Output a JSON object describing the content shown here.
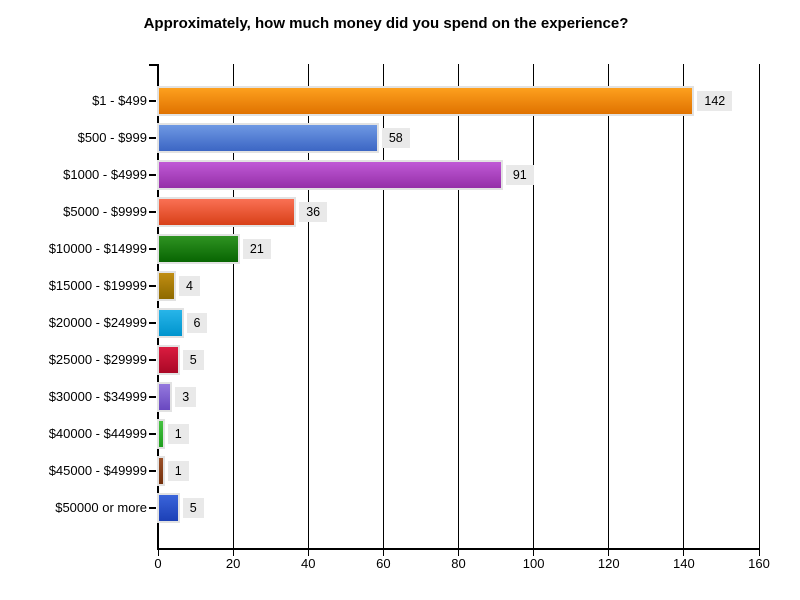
{
  "chart_data": {
    "type": "bar",
    "orientation": "horizontal",
    "title": "Approximately, how much money did you spend on the experience?",
    "categories": [
      "$1 - $499",
      "$500 - $999",
      "$1000 - $4999",
      "$5000 - $9999",
      "$10000 - $14999",
      "$15000 - $19999",
      "$20000 - $24999",
      "$25000 - $29999",
      "$30000 - $34999",
      "$40000 - $44999",
      "$45000 - $49999",
      "$50000 or more"
    ],
    "values": [
      142,
      58,
      91,
      36,
      21,
      4,
      6,
      5,
      3,
      1,
      1,
      5
    ],
    "value_labels": [
      "142",
      "58",
      "91",
      "36",
      "21",
      "4",
      "6",
      "5",
      "3",
      "1",
      "1",
      "5"
    ],
    "bar_gradients": [
      {
        "top": "#fda01e",
        "bottom": "#e07200"
      },
      {
        "top": "#6e98e3",
        "bottom": "#3c66c4"
      },
      {
        "top": "#c059d6",
        "bottom": "#9530a8"
      },
      {
        "top": "#fa7054",
        "bottom": "#d84018"
      },
      {
        "top": "#2f9322",
        "bottom": "#086502"
      },
      {
        "top": "#c08d12",
        "bottom": "#8e6a00"
      },
      {
        "top": "#28b5e9",
        "bottom": "#0094cd"
      },
      {
        "top": "#da1c40",
        "bottom": "#aa0826"
      },
      {
        "top": "#9579de",
        "bottom": "#6948c0"
      },
      {
        "top": "#46c342",
        "bottom": "#1f9e1e"
      },
      {
        "top": "#9c5028",
        "bottom": "#74300c"
      },
      {
        "top": "#3a64da",
        "bottom": "#1c40b6"
      }
    ],
    "xlabel": "",
    "ylabel": "",
    "xlim": [
      0,
      160
    ],
    "x_ticks": [
      0,
      20,
      40,
      60,
      80,
      100,
      120,
      140,
      160
    ],
    "x_tick_labels": [
      "0",
      "20",
      "40",
      "60",
      "80",
      "100",
      "120",
      "140",
      "160"
    ],
    "grid": true,
    "legend": false,
    "colors": {
      "background": "#ffffff",
      "axis": "#000000",
      "gridline": "#000000",
      "value_label_bg": "#e9e9e9",
      "text": "#000000"
    }
  }
}
